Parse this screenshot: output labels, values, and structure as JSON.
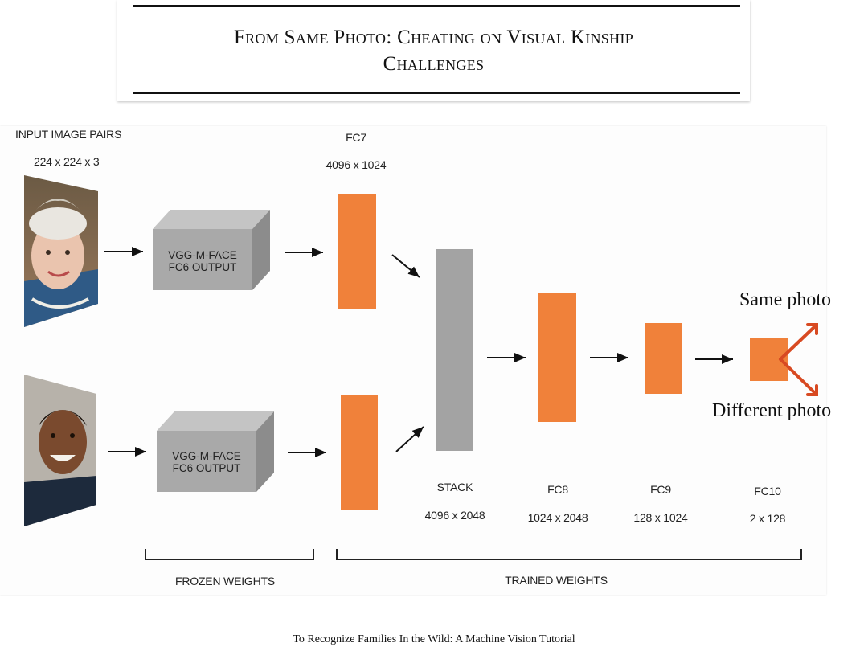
{
  "title": {
    "line1": "From Same Photo: Cheating on Visual Kinship",
    "line2": "Challenges"
  },
  "diagram": {
    "input_label": "INPUT IMAGE PAIRS",
    "input_dims": "224 x 224 x 3",
    "vgg_top": "VGG-M-FACE\nFC6 OUTPUT",
    "vgg_bottom": "VGG-M-FACE\nFC6 OUTPUT",
    "fc7_label": "FC7",
    "fc7_dims": "4096 x 1024",
    "stack_label": "STACK",
    "stack_dims": "4096 x 2048",
    "fc8_label": "FC8",
    "fc8_dims": "1024 x 2048",
    "fc9_label": "FC9",
    "fc9_dims": "128 x 1024",
    "fc10_label": "FC10",
    "fc10_dims": "2 x 128",
    "frozen_label": "FROZEN WEIGHTS",
    "trained_label": "TRAINED WEIGHTS",
    "out_same": "Same photo",
    "out_diff": "Different photo"
  },
  "colors": {
    "orange": "#f0813a",
    "gray_box": "#a9a9a9",
    "stack_gray": "#a3a3a3",
    "arrow_red": "#d84a22"
  },
  "footer": "To Recognize Families In the Wild: A Machine Vision Tutorial"
}
